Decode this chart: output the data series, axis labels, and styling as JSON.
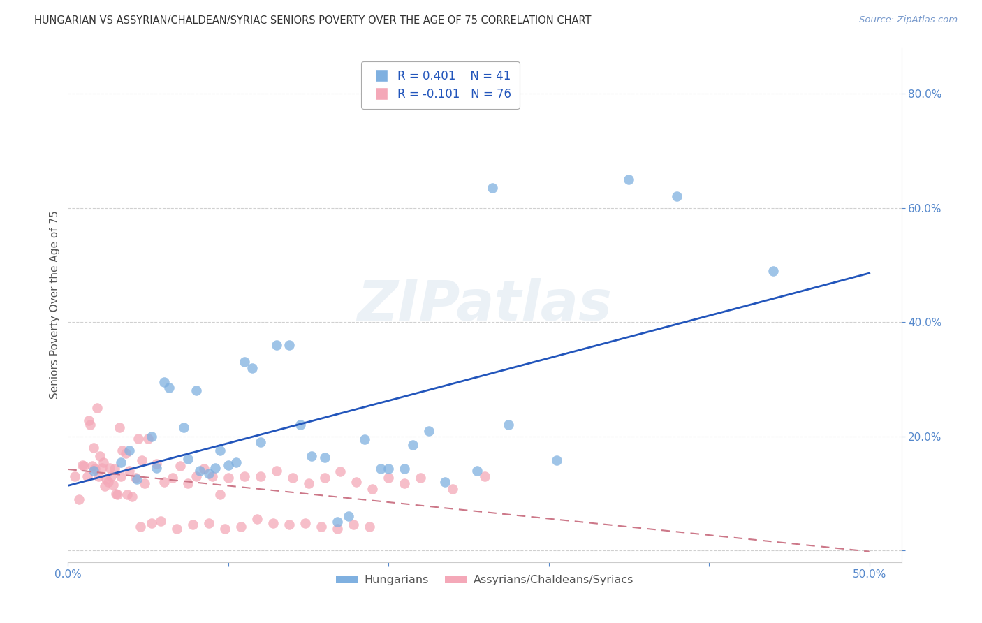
{
  "title": "HUNGARIAN VS ASSYRIAN/CHALDEAN/SYRIAC SENIORS POVERTY OVER THE AGE OF 75 CORRELATION CHART",
  "source": "Source: ZipAtlas.com",
  "ylabel": "Seniors Poverty Over the Age of 75",
  "xlim": [
    0.0,
    0.52
  ],
  "ylim": [
    -0.02,
    0.88
  ],
  "xticks": [
    0.0,
    0.1,
    0.2,
    0.3,
    0.4,
    0.5
  ],
  "yticks": [
    0.0,
    0.2,
    0.4,
    0.6,
    0.8
  ],
  "ytick_labels": [
    "",
    "20.0%",
    "40.0%",
    "60.0%",
    "80.0%"
  ],
  "xtick_labels": [
    "0.0%",
    "",
    "",
    "",
    "",
    "50.0%"
  ],
  "grid_color": "#d0d0d0",
  "background_color": "#ffffff",
  "watermark_text": "ZIPatlas",
  "blue_scatter_color": "#7fb0e0",
  "pink_scatter_color": "#f4a8b8",
  "blue_line_color": "#2255bb",
  "pink_line_color": "#cc7788",
  "title_color": "#333333",
  "ylabel_color": "#555555",
  "tick_color": "#5588cc",
  "source_color": "#7799cc",
  "legend_label1": "Hungarians",
  "legend_label2": "Assyrians/Chaldeans/Syriacs",
  "hun_R": 0.401,
  "hun_N": 41,
  "ass_R": -0.101,
  "ass_N": 76,
  "hungarian_x": [
    0.016,
    0.033,
    0.038,
    0.043,
    0.052,
    0.055,
    0.06,
    0.063,
    0.072,
    0.075,
    0.08,
    0.082,
    0.088,
    0.092,
    0.095,
    0.1,
    0.105,
    0.11,
    0.115,
    0.12,
    0.13,
    0.138,
    0.145,
    0.152,
    0.16,
    0.168,
    0.175,
    0.185,
    0.195,
    0.2,
    0.21,
    0.215,
    0.225,
    0.235,
    0.255,
    0.265,
    0.275,
    0.305,
    0.35,
    0.38,
    0.44
  ],
  "hungarian_y": [
    0.14,
    0.155,
    0.175,
    0.125,
    0.2,
    0.145,
    0.295,
    0.285,
    0.215,
    0.16,
    0.28,
    0.14,
    0.135,
    0.145,
    0.175,
    0.15,
    0.155,
    0.33,
    0.32,
    0.19,
    0.36,
    0.36,
    0.22,
    0.165,
    0.163,
    0.05,
    0.06,
    0.195,
    0.143,
    0.143,
    0.143,
    0.185,
    0.21,
    0.12,
    0.14,
    0.635,
    0.22,
    0.158,
    0.65,
    0.62,
    0.49
  ],
  "assyrian_x": [
    0.004,
    0.007,
    0.009,
    0.012,
    0.014,
    0.016,
    0.018,
    0.02,
    0.022,
    0.024,
    0.026,
    0.028,
    0.03,
    0.032,
    0.034,
    0.036,
    0.038,
    0.04,
    0.042,
    0.044,
    0.046,
    0.048,
    0.01,
    0.013,
    0.015,
    0.017,
    0.019,
    0.021,
    0.023,
    0.025,
    0.027,
    0.029,
    0.031,
    0.033,
    0.037,
    0.05,
    0.055,
    0.06,
    0.065,
    0.07,
    0.075,
    0.08,
    0.085,
    0.09,
    0.095,
    0.1,
    0.11,
    0.12,
    0.13,
    0.14,
    0.15,
    0.16,
    0.17,
    0.18,
    0.19,
    0.2,
    0.21,
    0.22,
    0.24,
    0.26,
    0.045,
    0.052,
    0.058,
    0.068,
    0.078,
    0.088,
    0.098,
    0.108,
    0.118,
    0.128,
    0.138,
    0.148,
    0.158,
    0.168,
    0.178,
    0.188
  ],
  "assyrian_y": [
    0.13,
    0.09,
    0.15,
    0.13,
    0.22,
    0.18,
    0.25,
    0.165,
    0.155,
    0.125,
    0.145,
    0.115,
    0.1,
    0.215,
    0.175,
    0.17,
    0.14,
    0.095,
    0.128,
    0.196,
    0.158,
    0.118,
    0.148,
    0.228,
    0.148,
    0.143,
    0.13,
    0.145,
    0.113,
    0.12,
    0.13,
    0.143,
    0.098,
    0.13,
    0.098,
    0.196,
    0.152,
    0.12,
    0.128,
    0.148,
    0.118,
    0.13,
    0.143,
    0.13,
    0.098,
    0.128,
    0.13,
    0.13,
    0.14,
    0.128,
    0.118,
    0.128,
    0.138,
    0.12,
    0.108,
    0.128,
    0.118,
    0.128,
    0.108,
    0.13,
    0.042,
    0.048,
    0.052,
    0.038,
    0.045,
    0.048,
    0.038,
    0.042,
    0.055,
    0.048,
    0.045,
    0.048,
    0.042,
    0.038,
    0.045,
    0.042
  ]
}
